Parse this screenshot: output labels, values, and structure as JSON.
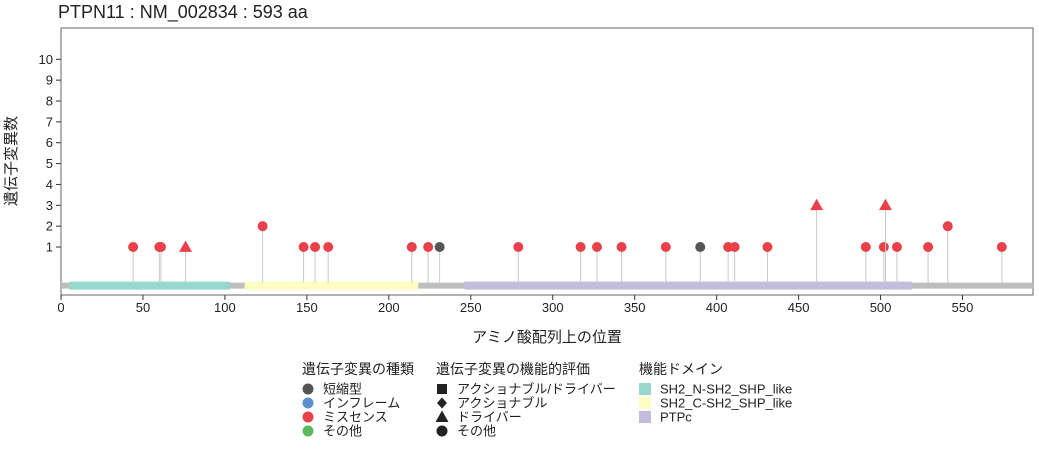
{
  "title": "PTPN11 : NM_002834 : 593 aa",
  "colors": {
    "missense": "#E8414A",
    "truncating": "#555555",
    "inframe": "#5B8FC9",
    "other": "#5CB85C",
    "backbone": "#BEBEBE",
    "stem": "#C8C8C8"
  },
  "chart_data": {
    "type": "scatter",
    "title": "PTPN11 : NM_002834 : 593 aa",
    "xlabel": "アミノ酸配列上の位置",
    "ylabel": "遺伝子変異数",
    "xlim": [
      0,
      593
    ],
    "ylim": [
      -1.3,
      11.5
    ],
    "x_ticks": [
      0,
      50,
      100,
      150,
      200,
      250,
      300,
      350,
      400,
      450,
      500,
      550
    ],
    "y_ticks": [
      1,
      2,
      3,
      4,
      5,
      6,
      7,
      8,
      9,
      10
    ],
    "protein_length": 593,
    "domains": [
      {
        "name": "SH2_N-SH2_SHP_like",
        "start": 5,
        "end": 103,
        "color": "#96D8CE"
      },
      {
        "name": "SH2_C-SH2_SHP_like",
        "start": 112,
        "end": 218,
        "color": "#FCFDC0"
      },
      {
        "name": "PTPc",
        "start": 246,
        "end": 519,
        "color": "#C3BCDF"
      }
    ],
    "mutations": [
      {
        "position": 44,
        "count": 1,
        "type": "missense",
        "shape": "circle"
      },
      {
        "position": 60,
        "count": 1,
        "type": "missense",
        "shape": "circle"
      },
      {
        "position": 61,
        "count": 1,
        "type": "missense",
        "shape": "circle"
      },
      {
        "position": 76,
        "count": 1,
        "type": "missense",
        "shape": "triangle"
      },
      {
        "position": 123,
        "count": 2,
        "type": "missense",
        "shape": "circle"
      },
      {
        "position": 148,
        "count": 1,
        "type": "missense",
        "shape": "circle"
      },
      {
        "position": 155,
        "count": 1,
        "type": "missense",
        "shape": "circle"
      },
      {
        "position": 163,
        "count": 1,
        "type": "missense",
        "shape": "circle"
      },
      {
        "position": 214,
        "count": 1,
        "type": "missense",
        "shape": "circle"
      },
      {
        "position": 224,
        "count": 1,
        "type": "missense",
        "shape": "circle"
      },
      {
        "position": 231,
        "count": 1,
        "type": "truncating",
        "shape": "circle"
      },
      {
        "position": 279,
        "count": 1,
        "type": "missense",
        "shape": "circle"
      },
      {
        "position": 317,
        "count": 1,
        "type": "missense",
        "shape": "circle"
      },
      {
        "position": 327,
        "count": 1,
        "type": "missense",
        "shape": "circle"
      },
      {
        "position": 342,
        "count": 1,
        "type": "missense",
        "shape": "circle"
      },
      {
        "position": 369,
        "count": 1,
        "type": "missense",
        "shape": "circle"
      },
      {
        "position": 390,
        "count": 1,
        "type": "truncating",
        "shape": "circle"
      },
      {
        "position": 407,
        "count": 1,
        "type": "missense",
        "shape": "circle"
      },
      {
        "position": 411,
        "count": 1,
        "type": "missense",
        "shape": "circle"
      },
      {
        "position": 431,
        "count": 1,
        "type": "missense",
        "shape": "circle"
      },
      {
        "position": 461,
        "count": 3,
        "type": "missense",
        "shape": "triangle"
      },
      {
        "position": 491,
        "count": 1,
        "type": "missense",
        "shape": "circle"
      },
      {
        "position": 502,
        "count": 1,
        "type": "missense",
        "shape": "circle"
      },
      {
        "position": 503,
        "count": 3,
        "type": "missense",
        "shape": "triangle"
      },
      {
        "position": 510,
        "count": 1,
        "type": "missense",
        "shape": "circle"
      },
      {
        "position": 529,
        "count": 1,
        "type": "missense",
        "shape": "circle"
      },
      {
        "position": 541,
        "count": 2,
        "type": "missense",
        "shape": "circle"
      },
      {
        "position": 574,
        "count": 1,
        "type": "missense",
        "shape": "circle"
      }
    ]
  },
  "legend": {
    "type_title": "遺伝子変異の種類",
    "type_items": [
      {
        "label": "短縮型",
        "color": "#555555"
      },
      {
        "label": "インフレーム",
        "color": "#5B8FC9"
      },
      {
        "label": "ミスセンス",
        "color": "#E8414A"
      },
      {
        "label": "その他",
        "color": "#5CB85C"
      }
    ],
    "func_title": "遺伝子変異の機能的評価",
    "func_items": [
      {
        "label": "アクショナブル/ドライバー",
        "shape": "square"
      },
      {
        "label": "アクショナブル",
        "shape": "diamond"
      },
      {
        "label": "ドライバー",
        "shape": "triangle"
      },
      {
        "label": "その他",
        "shape": "circle"
      }
    ],
    "domain_title": "機能ドメイン",
    "domain_items": [
      {
        "label": "SH2_N-SH2_SHP_like",
        "color": "#96D8CE"
      },
      {
        "label": "SH2_C-SH2_SHP_like",
        "color": "#FCFDC0"
      },
      {
        "label": "PTPc",
        "color": "#C3BCDF"
      }
    ]
  }
}
